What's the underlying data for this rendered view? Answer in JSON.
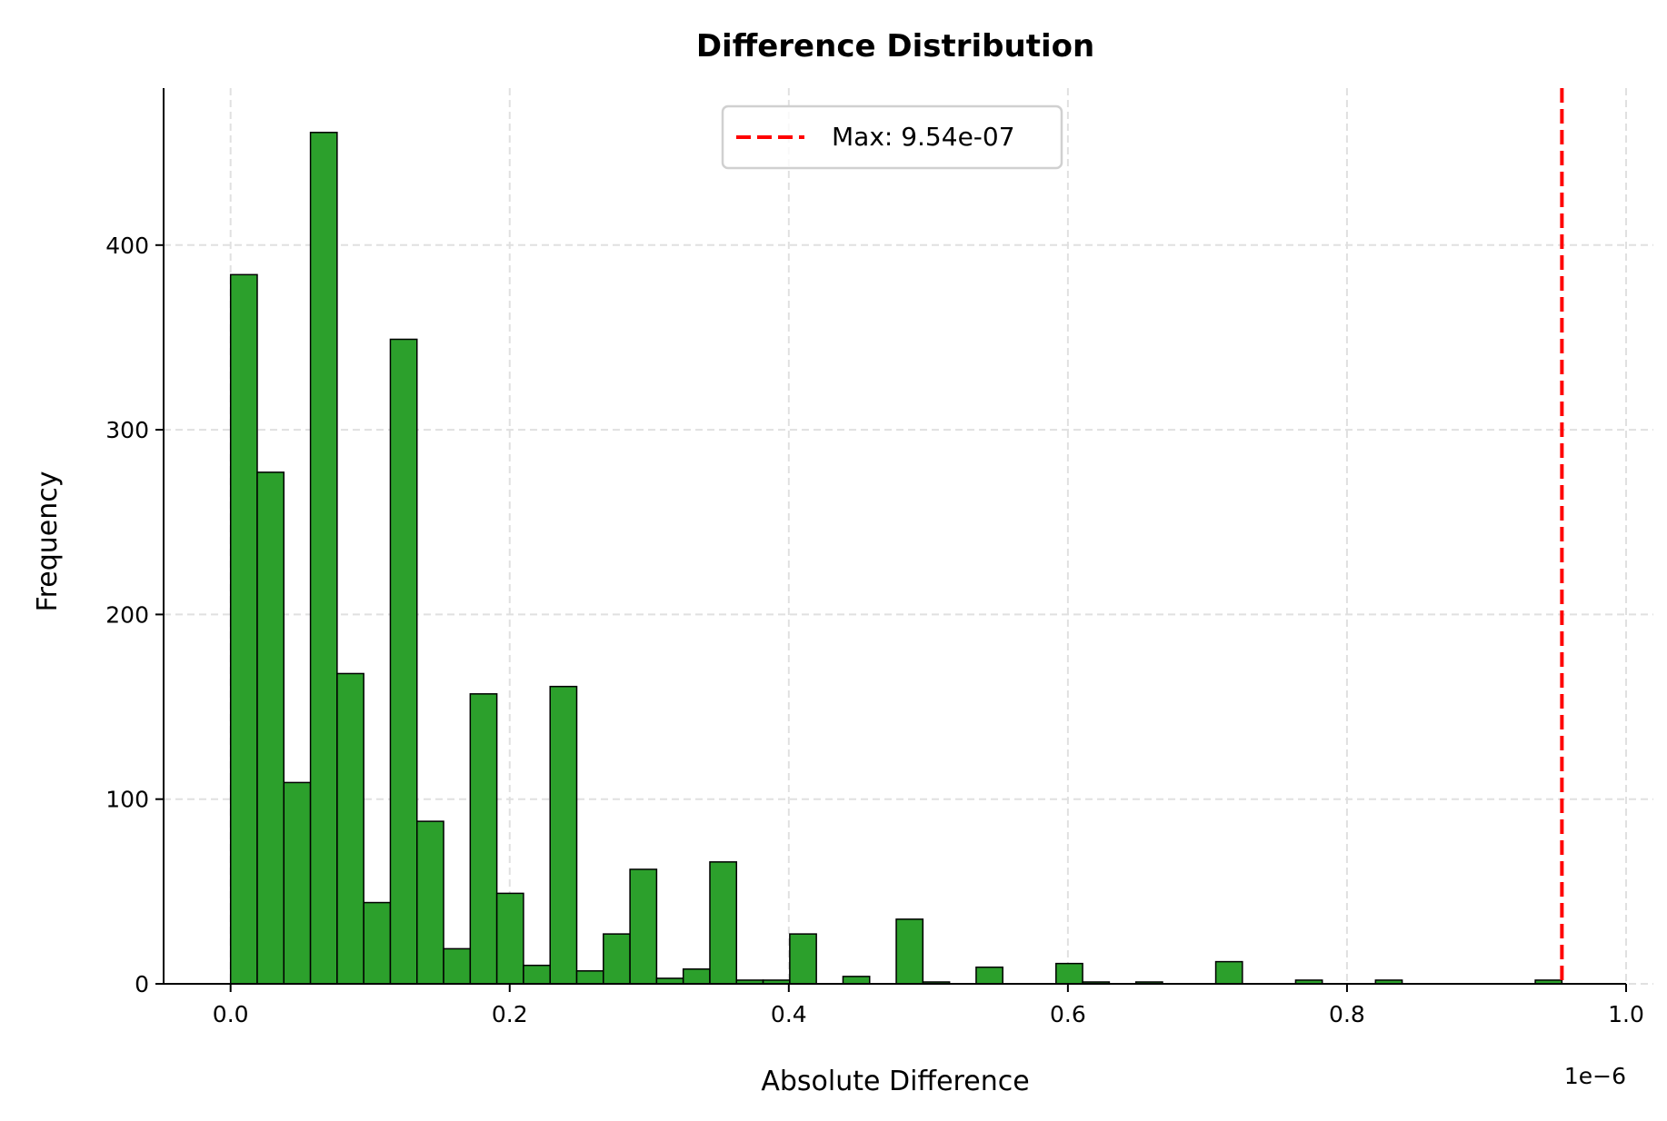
{
  "chart_data": {
    "type": "bar",
    "subtype": "histogram",
    "title": "Difference Distribution",
    "xlabel": "Absolute Difference",
    "ylabel": "Frequency",
    "x_offset_label": "1e−6",
    "xlim": [
      -0.048,
      1.0
    ],
    "ylim": [
      0,
      485
    ],
    "x_scale_note_units": "1e-6",
    "bin_range": [
      0.0,
      0.954
    ],
    "bin_count": 50,
    "values": [
      384,
      277,
      109,
      461,
      168,
      44,
      349,
      88,
      19,
      157,
      49,
      10,
      161,
      7,
      27,
      62,
      3,
      8,
      66,
      2,
      2,
      27,
      0,
      4,
      0,
      35,
      1,
      0,
      9,
      0,
      0,
      11,
      1,
      0,
      1,
      0,
      0,
      12,
      0,
      0,
      2,
      0,
      0,
      2,
      0,
      0,
      0,
      0,
      0,
      2
    ],
    "xticks": [
      "0.0",
      "0.2",
      "0.4",
      "0.6",
      "0.8",
      "1.0"
    ],
    "xtick_values": [
      0,
      0.2,
      0.4,
      0.6,
      0.8,
      1.0
    ],
    "yticks": [
      "0",
      "100",
      "200",
      "300",
      "400"
    ],
    "ytick_values": [
      0,
      100,
      200,
      300,
      400
    ],
    "grid": true,
    "bar_color": "#2ca02c",
    "bar_edge_color": "#000000",
    "max_line": {
      "x": 0.954,
      "color": "#ff0000",
      "style": "dashed"
    },
    "legend": {
      "placement": "top-center",
      "entries": [
        "Max: 9.54e-07"
      ]
    }
  }
}
